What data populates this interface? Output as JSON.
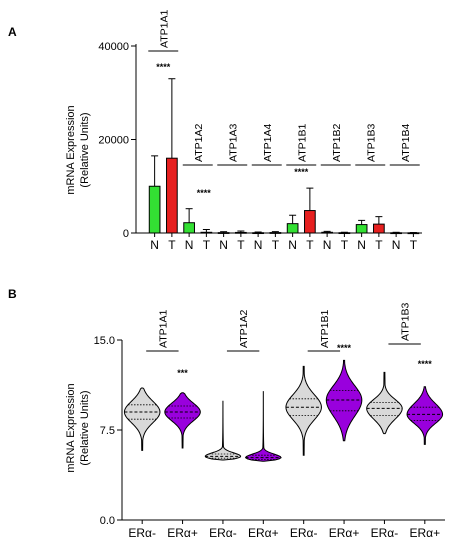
{
  "chart_data": [
    {
      "panel": "A",
      "type": "bar",
      "ylabel_lines": [
        "mRNA Expression",
        "(Relative Units)"
      ],
      "ylim": [
        0,
        40000
      ],
      "yticks": [
        0,
        20000,
        40000
      ],
      "ytick_labels": [
        "0",
        "20000",
        "40000"
      ],
      "categories": [
        "N",
        "T",
        "N",
        "T",
        "N",
        "T",
        "N",
        "T",
        "N",
        "T",
        "N",
        "T",
        "N",
        "T",
        "N",
        "T"
      ],
      "genes": [
        {
          "name": "ATP1A1",
          "sig": "****"
        },
        {
          "name": "ATP1A2",
          "sig": "****"
        },
        {
          "name": "ATP1A3",
          "sig": ""
        },
        {
          "name": "ATP1A4",
          "sig": ""
        },
        {
          "name": "ATP1B1",
          "sig": "****"
        },
        {
          "name": "ATP1B2",
          "sig": ""
        },
        {
          "name": "ATP1B3",
          "sig": ""
        },
        {
          "name": "ATP1B4",
          "sig": ""
        }
      ],
      "values": [
        10000,
        16000,
        2200,
        150,
        80,
        120,
        60,
        90,
        2000,
        4800,
        150,
        60,
        1800,
        1900,
        50,
        40
      ],
      "errors": [
        6500,
        17000,
        3000,
        600,
        200,
        300,
        150,
        200,
        1800,
        4800,
        200,
        100,
        900,
        1600,
        100,
        60
      ],
      "colors": {
        "N": "#33e033",
        "T": "#e62020"
      }
    },
    {
      "panel": "B",
      "type": "violin",
      "ylabel_lines": [
        "mRNA Expression",
        "(Relative Units)"
      ],
      "ylim": [
        0,
        15
      ],
      "yticks": [
        0,
        7.5,
        15
      ],
      "ytick_labels": [
        "0.0",
        "7.5",
        "15.0"
      ],
      "categories": [
        "ERα-",
        "ERα+",
        "ERα-",
        "ERα+",
        "ERα-",
        "ERα+",
        "ERα-",
        "ERα+"
      ],
      "genes": [
        {
          "name": "ATP1A1",
          "sig": "***"
        },
        {
          "name": "ATP1A2",
          "sig": ""
        },
        {
          "name": "ATP1B1",
          "sig": "****"
        },
        {
          "name": "ATP1B3",
          "sig": "****"
        }
      ],
      "violins": [
        {
          "min": 5.8,
          "q1": 8.4,
          "median": 9.0,
          "q3": 9.6,
          "max": 11.0
        },
        {
          "min": 6.0,
          "q1": 8.5,
          "median": 9.0,
          "q3": 9.5,
          "max": 10.6
        },
        {
          "min": 5.0,
          "q1": 5.15,
          "median": 5.3,
          "q3": 5.5,
          "max": 9.9
        },
        {
          "min": 4.9,
          "q1": 5.05,
          "median": 5.2,
          "q3": 5.4,
          "max": 10.7
        },
        {
          "min": 5.4,
          "q1": 8.7,
          "median": 9.4,
          "q3": 10.1,
          "max": 12.8
        },
        {
          "min": 6.6,
          "q1": 9.1,
          "median": 10.0,
          "q3": 10.8,
          "max": 13.3
        },
        {
          "min": 7.2,
          "q1": 8.7,
          "median": 9.3,
          "q3": 9.8,
          "max": 12.3
        },
        {
          "min": 6.3,
          "q1": 8.3,
          "median": 8.8,
          "q3": 9.4,
          "max": 11.1
        }
      ],
      "colors": {
        "ERα-": "#d9d9d9",
        "ERα+": "#9900dd"
      }
    }
  ]
}
